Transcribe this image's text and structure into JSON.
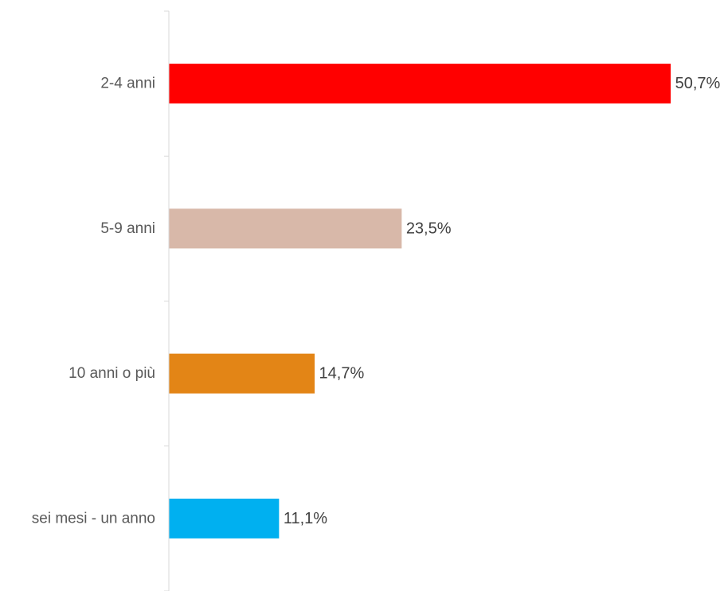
{
  "chart_data": {
    "type": "bar",
    "orientation": "horizontal",
    "title": "",
    "xlabel": "",
    "ylabel": "",
    "grid": false,
    "legend": "none",
    "xlim": [
      0,
      55
    ],
    "categories": [
      "2-4 anni",
      "5-9 anni",
      "10 anni o più",
      "sei mesi - un anno"
    ],
    "values": [
      50.7,
      23.5,
      14.7,
      11.1
    ],
    "value_labels": [
      "50,7%",
      "23,5%",
      "14,7%",
      "11,1%"
    ],
    "bar_colors": [
      "#ff0000",
      "#d8b8a9",
      "#e38516",
      "#00b0f0"
    ]
  }
}
